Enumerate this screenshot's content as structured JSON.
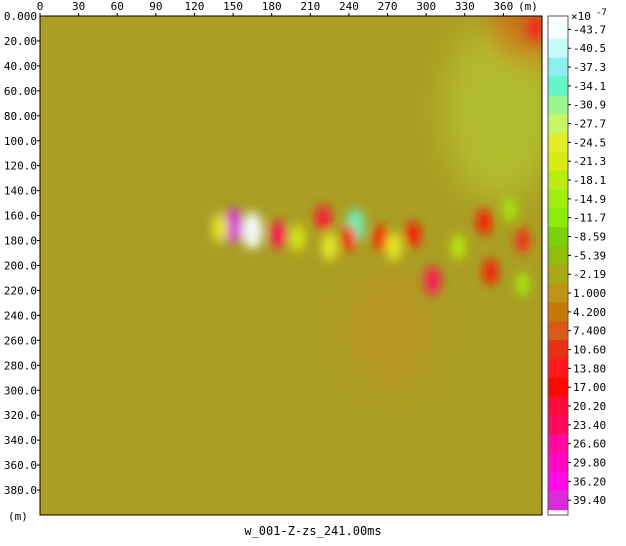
{
  "chart_data": {
    "type": "heatmap",
    "title": "w_001-Z-zs_241.00ms",
    "x_unit": "(m)",
    "y_unit": "(m)",
    "x_ticks": [
      0,
      30,
      60,
      90,
      120,
      150,
      180,
      210,
      240,
      270,
      300,
      330,
      360
    ],
    "x_tick_labels": [
      "0",
      "30",
      "60",
      "90",
      "120",
      "150",
      "180",
      "210",
      "240",
      "270",
      "300",
      "330",
      "360"
    ],
    "xlim": [
      0,
      390
    ],
    "y_ticks": [
      20,
      40,
      60,
      80,
      100,
      120,
      140,
      160,
      180,
      200,
      220,
      240,
      260,
      280,
      300,
      320,
      340,
      360,
      380
    ],
    "y_tick_labels": [
      "20.00",
      "40.00",
      "60.00",
      "80.00",
      "100.0",
      "120.0",
      "140.0",
      "160.0",
      "180.0",
      "200.0",
      "220.0",
      "240.0",
      "260.0",
      "280.0",
      "300.0",
      "320.0",
      "340.0",
      "360.0",
      "380.0"
    ],
    "ylim": [
      0,
      400
    ],
    "y_top_label": "0.000",
    "colorbar": {
      "scale_label": "×10",
      "scale_exponent": "-7",
      "values": [
        -43.7,
        -40.5,
        -37.3,
        -34.1,
        -30.9,
        -27.7,
        -24.5,
        -21.3,
        -18.1,
        -14.9,
        -11.7,
        -8.59,
        -5.39,
        -2.19,
        1.0,
        4.2,
        7.4,
        10.6,
        13.8,
        17.0,
        20.2,
        23.4,
        26.6,
        29.8,
        36.2,
        39.4
      ],
      "labels": [
        "-43.7",
        "-40.5",
        "-37.3",
        "-34.1",
        "-30.9",
        "-27.7",
        "-24.5",
        "-21.3",
        "-18.1",
        "-14.9",
        "-11.7",
        "-8.59",
        "-5.39",
        "-2.19",
        "1.000",
        "4.200",
        "7.400",
        "10.60",
        "13.80",
        "17.00",
        "20.20",
        "23.40",
        "26.60",
        "29.80",
        "36.20",
        "39.40"
      ],
      "colors": [
        "#f6ffff",
        "#c4fbfb",
        "#8eefef",
        "#64f5c8",
        "#9af58a",
        "#c8f564",
        "#e6ec2a",
        "#d8ec14",
        "#b9ed12",
        "#a2ed0f",
        "#8cec0e",
        "#7ad10c",
        "#8fbf0a",
        "#a9a716",
        "#c09218",
        "#c7780d",
        "#d95a18",
        "#e83014",
        "#ff1a1a",
        "#ff0800",
        "#ff0a3c",
        "#ff0a5c",
        "#ff0aa0",
        "#ff0ac0",
        "#ff0ae6",
        "#d82cdc"
      ]
    },
    "background_color": "#ab9e24",
    "features": [
      {
        "x": 150,
        "y": 168,
        "value": 39.4
      },
      {
        "x": 165,
        "y": 172,
        "value": -43.7
      },
      {
        "x": 185,
        "y": 175,
        "value": 23.4
      },
      {
        "x": 140,
        "y": 170,
        "value": -24.5
      },
      {
        "x": 200,
        "y": 178,
        "value": -21.3
      },
      {
        "x": 220,
        "y": 162,
        "value": 20.2
      },
      {
        "x": 225,
        "y": 185,
        "value": -24.5
      },
      {
        "x": 245,
        "y": 168,
        "value": -34.1
      },
      {
        "x": 240,
        "y": 178,
        "value": 17.0
      },
      {
        "x": 265,
        "y": 178,
        "value": 17.0
      },
      {
        "x": 275,
        "y": 185,
        "value": -24.5
      },
      {
        "x": 290,
        "y": 175,
        "value": 17.0
      },
      {
        "x": 305,
        "y": 212,
        "value": 23.4
      },
      {
        "x": 325,
        "y": 185,
        "value": -18.1
      },
      {
        "x": 345,
        "y": 165,
        "value": 17.0
      },
      {
        "x": 365,
        "y": 155,
        "value": -14.9
      },
      {
        "x": 350,
        "y": 205,
        "value": 17.0
      },
      {
        "x": 375,
        "y": 180,
        "value": 13.8
      },
      {
        "x": 375,
        "y": 215,
        "value": -14.9
      },
      {
        "x": 385,
        "y": 10,
        "value": 13.8
      }
    ]
  }
}
